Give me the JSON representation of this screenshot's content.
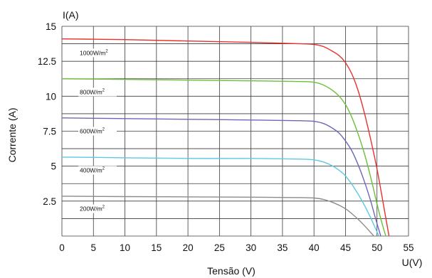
{
  "chart_data": {
    "type": "line",
    "ylabel_top": "I(A)",
    "ylabel": "Corrente (A)",
    "xlabel": "Tensão (V)",
    "xlabel_right": "U(V)",
    "xlim": [
      0,
      55
    ],
    "ylim": [
      0,
      15
    ],
    "x_ticks": [
      "0",
      "5",
      "10",
      "15",
      "20",
      "25",
      "30",
      "35",
      "40",
      "45",
      "50",
      "55"
    ],
    "y_ticks": [
      "2.5",
      "5",
      "7.5",
      "10",
      "12.5",
      "15"
    ],
    "grid": true,
    "series": [
      {
        "name": "1000W/m",
        "superscript": "2",
        "color": "#e8312c",
        "x": [
          0,
          10,
          20,
          30,
          38,
          40,
          41.5,
          43,
          44,
          45,
          46,
          47,
          48,
          49,
          50,
          51,
          51.9
        ],
        "y": [
          14.1,
          14.05,
          13.95,
          13.85,
          13.75,
          13.7,
          13.55,
          13.2,
          12.9,
          12.4,
          11.6,
          10.4,
          8.8,
          6.9,
          4.8,
          2.3,
          0
        ]
      },
      {
        "name": "800W/m",
        "superscript": "2",
        "color": "#6cbf3a",
        "x": [
          0,
          10,
          20,
          30,
          38,
          40,
          41.5,
          43,
          44,
          45,
          46,
          47,
          48,
          49,
          50,
          50.8,
          51.4
        ],
        "y": [
          11.25,
          11.2,
          11.15,
          11.1,
          11.05,
          11.0,
          10.8,
          10.4,
          10.0,
          9.4,
          8.5,
          7.3,
          5.9,
          4.2,
          2.3,
          0.9,
          0
        ]
      },
      {
        "name": "600W/m",
        "superscript": "2",
        "color": "#6b67b9",
        "x": [
          0,
          10,
          20,
          30,
          38,
          40,
          41.5,
          43,
          44,
          45,
          46,
          47,
          48,
          49,
          49.8,
          50.6
        ],
        "y": [
          8.45,
          8.4,
          8.35,
          8.3,
          8.25,
          8.2,
          8.05,
          7.7,
          7.35,
          6.8,
          6.1,
          5.1,
          3.9,
          2.5,
          1.2,
          0
        ]
      },
      {
        "name": "400W/m",
        "superscript": "2",
        "color": "#5ec8e6",
        "x": [
          0,
          10,
          20,
          30,
          38,
          40,
          41.5,
          43,
          44,
          45,
          46,
          47,
          48,
          49,
          49.8,
          50.3
        ],
        "y": [
          5.65,
          5.6,
          5.55,
          5.55,
          5.5,
          5.45,
          5.3,
          5.0,
          4.7,
          4.3,
          3.7,
          3.0,
          2.2,
          1.3,
          0.5,
          0
        ]
      },
      {
        "name": "200W/m",
        "superscript": "2",
        "color": "#8c8c8c",
        "x": [
          0,
          10,
          20,
          30,
          38,
          40,
          41.5,
          43,
          44,
          45,
          46,
          47,
          48,
          49,
          49.5
        ],
        "y": [
          2.85,
          2.82,
          2.8,
          2.78,
          2.75,
          2.72,
          2.62,
          2.4,
          2.2,
          1.95,
          1.6,
          1.2,
          0.75,
          0.25,
          0
        ]
      }
    ]
  }
}
